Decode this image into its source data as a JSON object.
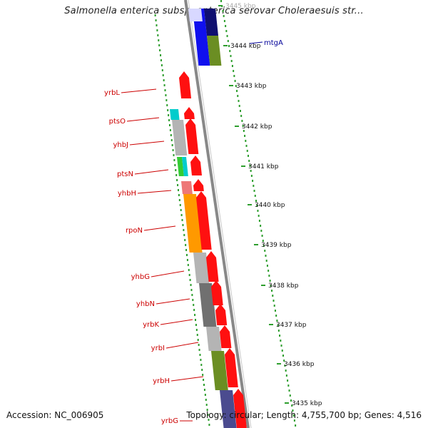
{
  "title": "Salmonella enterica subsp. enterica serovar Choleraesuis str...",
  "accession": "Accession: NC_006905",
  "topology": "Topology: circular; Length: 4,755,700 bp; Genes: 4,516",
  "colors": {
    "backbone": "#888888",
    "scale_dots": "#2e9e2e",
    "gene_label": "#cc0000",
    "mtgA_label": "#000099",
    "red": "#ff1010",
    "blue": "#1010ee",
    "navy": "#101070",
    "olive": "#6b8e23",
    "grey": "#b4b4b4",
    "darkgrey": "#707070",
    "orange": "#ff9900",
    "cyan": "#00cccc",
    "pink": "#ee7777",
    "green": "#33cc33",
    "slate": "#4b4b8f"
  },
  "scale_ticks": [
    "3445 kbp",
    "3444 kbp",
    "3443 kbp",
    "3442 kbp",
    "3441 kbp",
    "3440 kbp",
    "3439 kbp",
    "3438 kbp",
    "3437 kbp",
    "3436 kbp",
    "3435 kbp"
  ],
  "gene_labels": {
    "mtgA": "mtgA",
    "yrbL": "yrbL",
    "ptsO": "ptsO",
    "yhbJ": "yhbJ",
    "ptsN": "ptsN",
    "yhbH": "yhbH",
    "rpoN": "rpoN",
    "yhbG": "yhbG",
    "yhbN": "yhbN",
    "yrbK": "yrbK",
    "yrbI": "yrbI",
    "yrbH": "yrbH",
    "yrbG": "yrbG"
  }
}
